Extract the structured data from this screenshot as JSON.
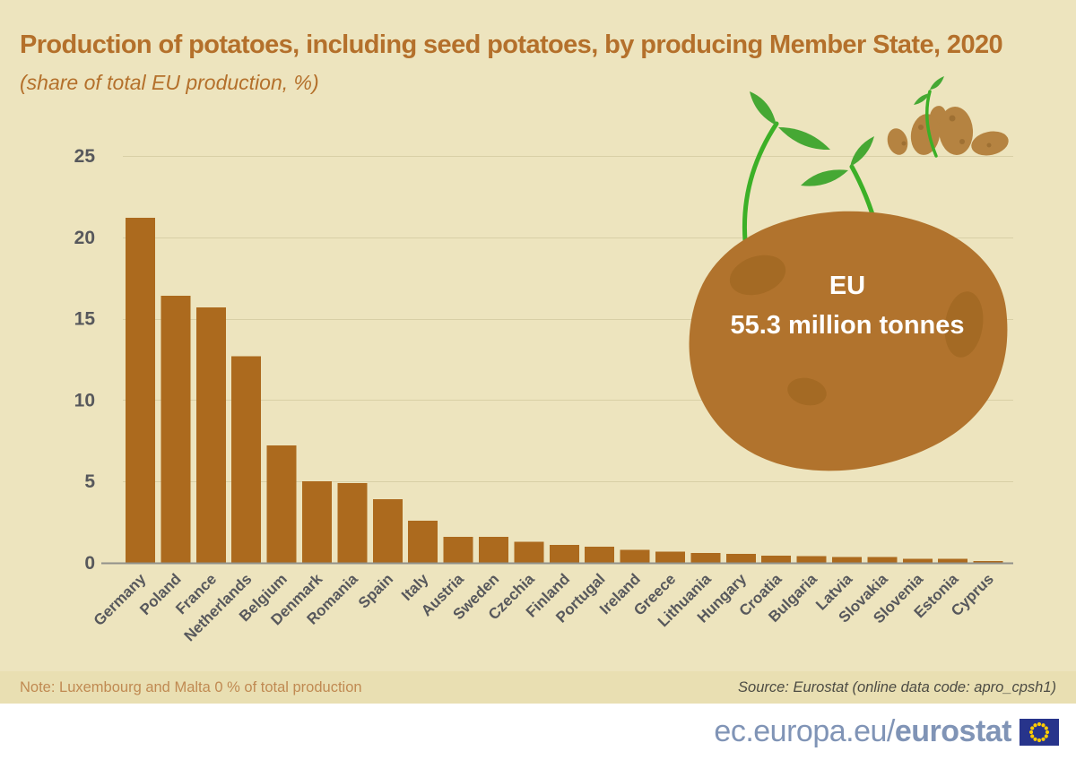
{
  "title": "Production of potatoes, including seed potatoes, by producing Member State, 2020",
  "subtitle": "(share of total EU production, %)",
  "eu_callout": {
    "line1": "EU",
    "line2": "55.3 million tonnes"
  },
  "note": "Note: Luxembourg and Malta 0 % of total production",
  "source": "Source: Eurostat (online data code: apro_cpsh1)",
  "footer": {
    "url_prefix": "ec.europa.eu/",
    "url_bold": "eurostat",
    "flag_icon": "eu-flag-icon"
  },
  "colors": {
    "background": "#EDE4BE",
    "strip": "#E9DFB2",
    "bar": "#AC6A1E",
    "title_text": "#B4702B",
    "axis_text": "#57585C",
    "gridline": "#D8CFA6",
    "axis_line": "#91918A",
    "note_text": "#C08A52",
    "source_text": "#4D4C44",
    "footer_text": "#8094B6",
    "flag_blue": "#27348B",
    "flag_stars": "#FFCC00",
    "potato": "#B1732D",
    "potato_spot": "#A46A24",
    "small_potato": "#B58341",
    "small_potato_spot": "#9E7033",
    "sprout_green": "#3CB027",
    "leaf_green": "#46A834",
    "callout_text": "#FFFFFF"
  },
  "chart_data": {
    "type": "bar",
    "title": "Production of potatoes, including seed potatoes, by producing Member State, 2020",
    "subtitle": "(share of total EU production, %)",
    "xlabel": "",
    "ylabel": "share of total EU production (%)",
    "ylim": [
      0,
      25
    ],
    "yticks": [
      0,
      5,
      10,
      15,
      20,
      25
    ],
    "grid": true,
    "legend": "none",
    "annotation": "EU 55.3 million tonnes",
    "categories": [
      "Germany",
      "Poland",
      "France",
      "Netherlands",
      "Belgium",
      "Denmark",
      "Romania",
      "Spain",
      "Italy",
      "Austria",
      "Sweden",
      "Czechia",
      "Finland",
      "Portugal",
      "Ireland",
      "Greece",
      "Lithuania",
      "Hungary",
      "Croatia",
      "Bulgaria",
      "Latvia",
      "Slovakia",
      "Slovenia",
      "Estonia",
      "Cyprus"
    ],
    "values": [
      21.2,
      16.4,
      15.7,
      12.7,
      7.2,
      5.0,
      4.9,
      3.9,
      2.6,
      1.6,
      1.6,
      1.3,
      1.1,
      1.0,
      0.8,
      0.7,
      0.6,
      0.55,
      0.45,
      0.4,
      0.35,
      0.35,
      0.25,
      0.25,
      0.1
    ]
  }
}
